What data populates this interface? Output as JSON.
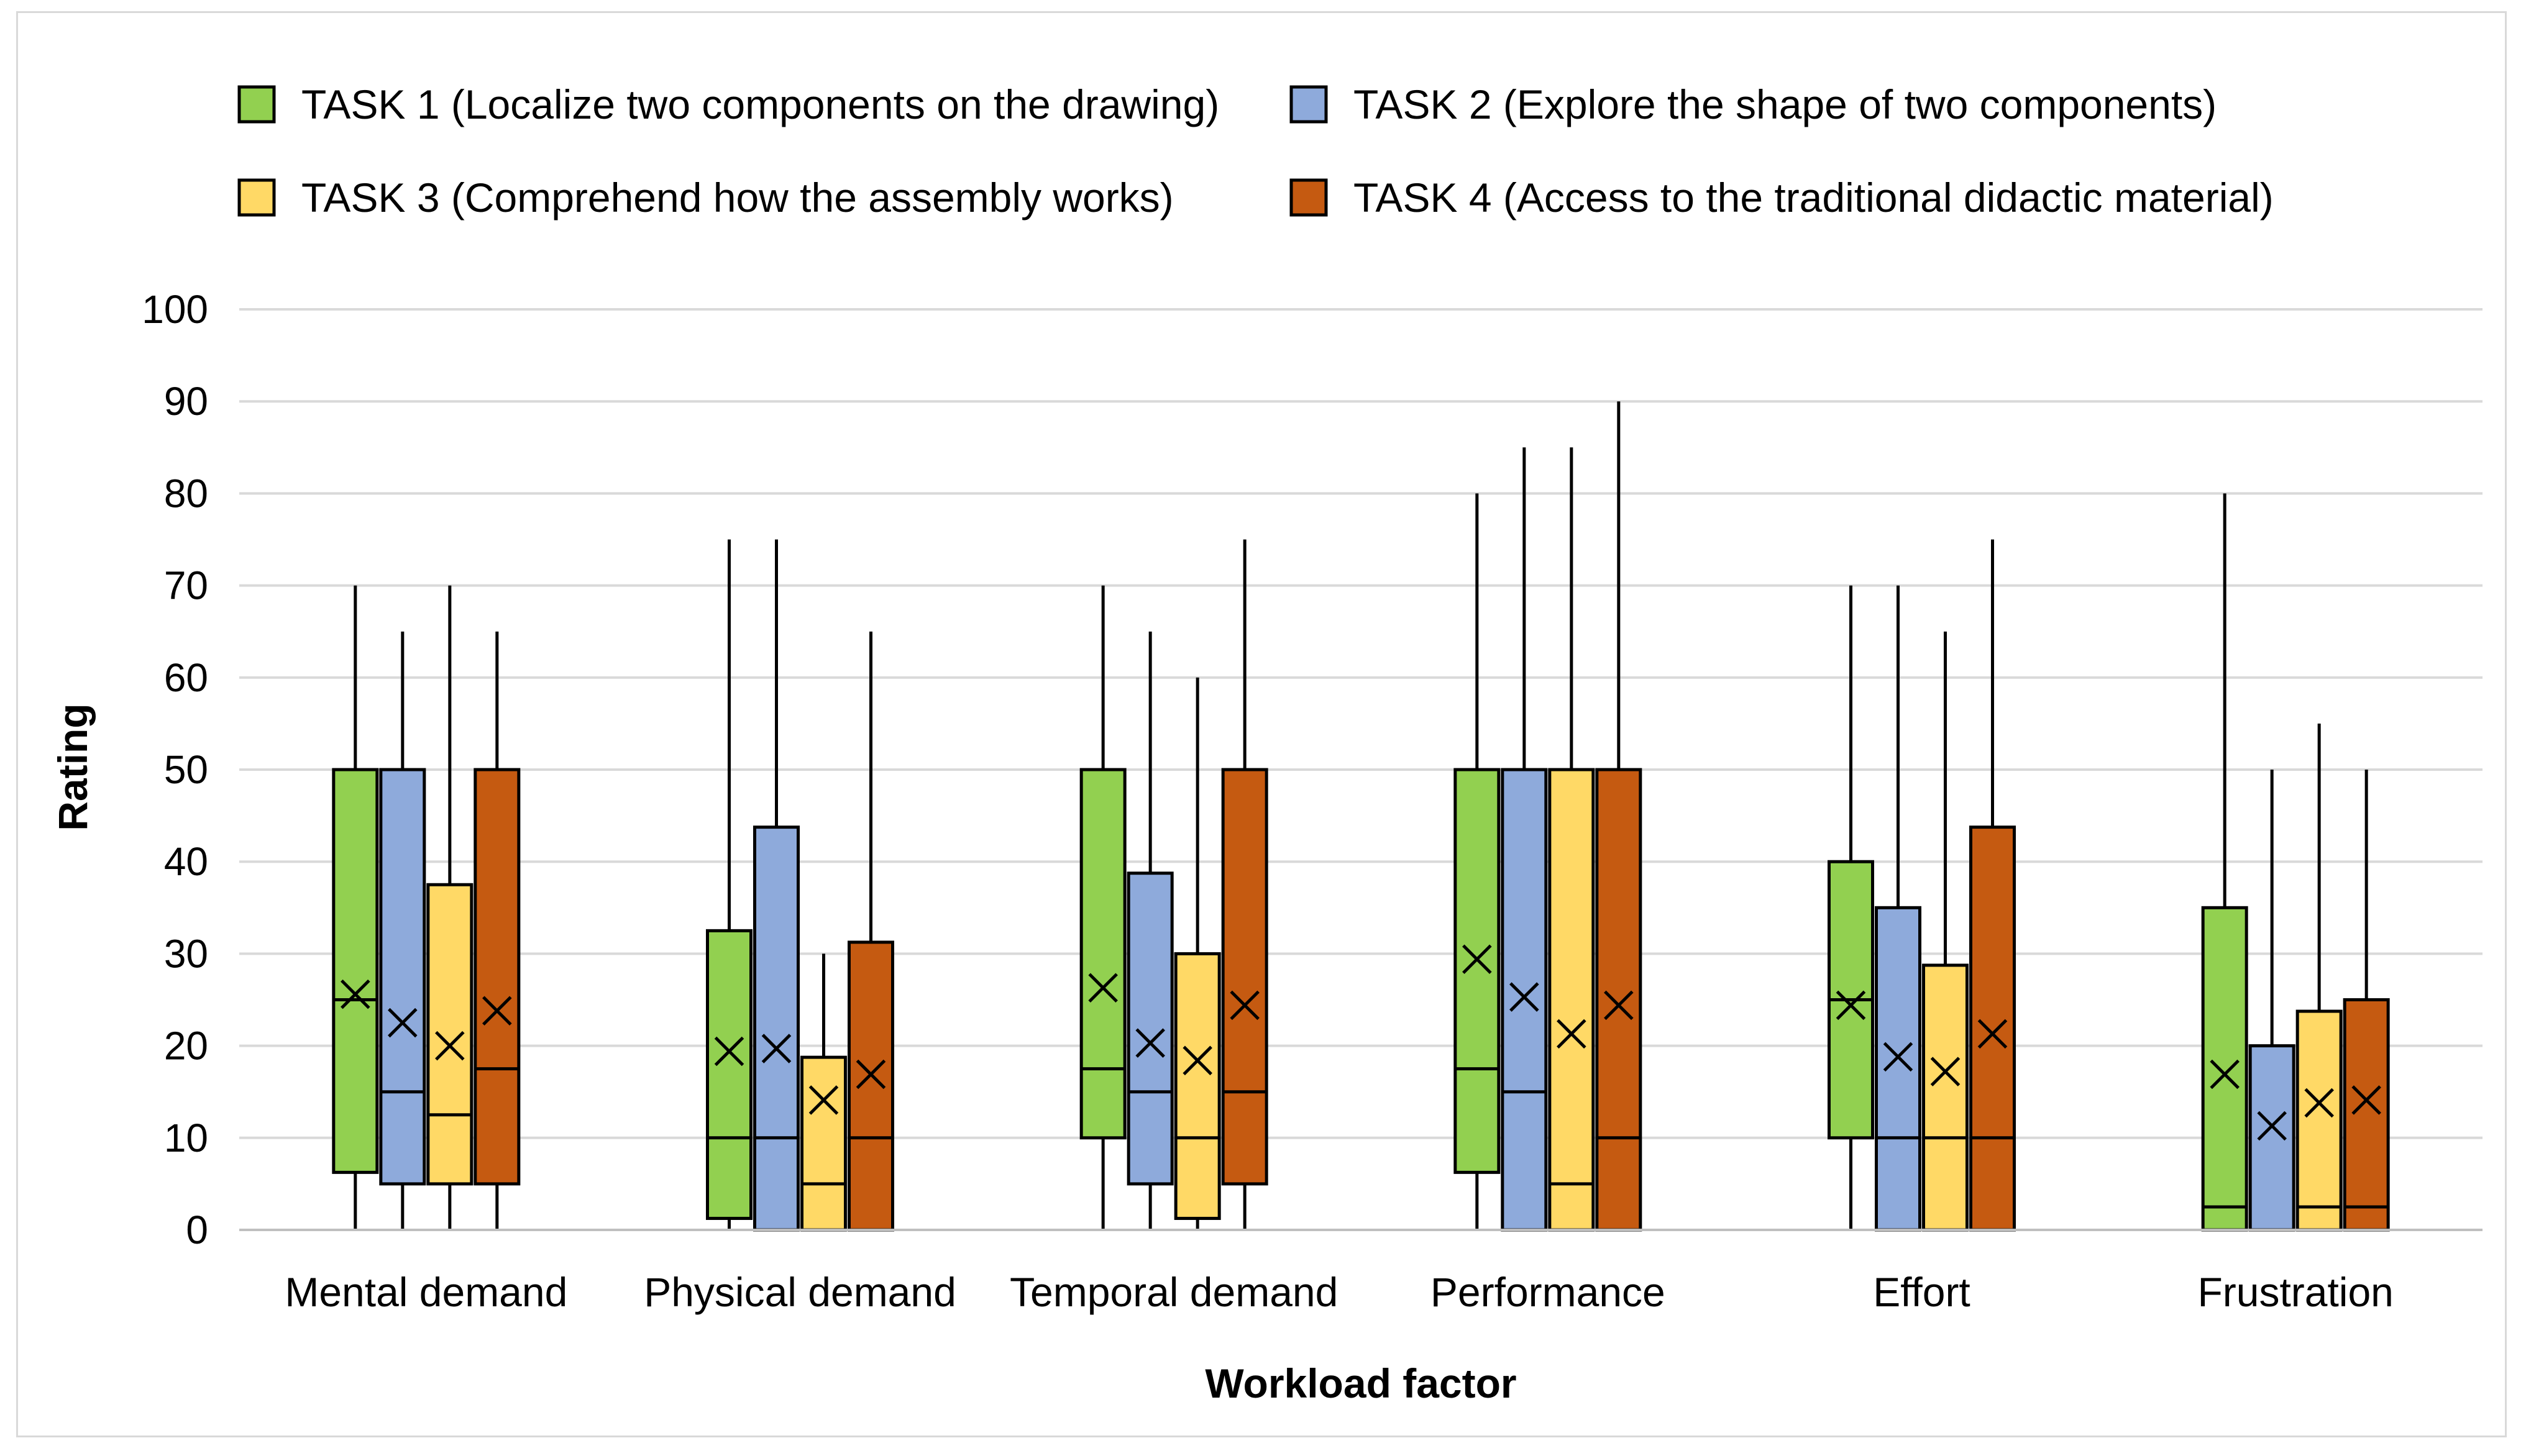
{
  "chart_data": {
    "type": "boxplot",
    "title": "",
    "xlabel": "Workload factor",
    "ylabel": "Rating",
    "ylim": [
      0,
      100
    ],
    "yticks": [
      0,
      10,
      20,
      30,
      40,
      50,
      60,
      70,
      80,
      90,
      100
    ],
    "grid": "horizontal",
    "legend_position": "top",
    "categories": [
      "Mental demand",
      "Physical demand",
      "Temporal demand",
      "Performance",
      "Effort",
      "Frustration"
    ],
    "series": [
      {
        "name": "TASK 1 (Localize two components on the drawing)",
        "color": "#92d050",
        "boxes": [
          {
            "min": 0,
            "q1": 6.25,
            "median": 25,
            "q3": 50,
            "max": 70,
            "mean": 25.6
          },
          {
            "min": 0,
            "q1": 1.25,
            "median": 10,
            "q3": 32.5,
            "max": 75,
            "mean": 19.4
          },
          {
            "min": 0,
            "q1": 10,
            "median": 17.5,
            "q3": 50,
            "max": 70,
            "mean": 26.3
          },
          {
            "min": 0,
            "q1": 6.25,
            "median": 17.5,
            "q3": 50,
            "max": 80,
            "mean": 29.4
          },
          {
            "min": 0,
            "q1": 10,
            "median": 25,
            "q3": 40,
            "max": 70,
            "mean": 24.4
          },
          {
            "min": 0,
            "q1": 0,
            "median": 2.5,
            "q3": 35,
            "max": 80,
            "mean": 16.9
          }
        ]
      },
      {
        "name": "TASK 2 (Explore the shape of two components)",
        "color": "#8eaadb",
        "boxes": [
          {
            "min": 0,
            "q1": 5,
            "median": 15,
            "q3": 50,
            "max": 65,
            "mean": 22.5
          },
          {
            "min": 0,
            "q1": 0,
            "median": 10,
            "q3": 43.75,
            "max": 75,
            "mean": 19.7
          },
          {
            "min": 0,
            "q1": 5,
            "median": 15,
            "q3": 38.75,
            "max": 65,
            "mean": 20.3
          },
          {
            "min": 0,
            "q1": 0,
            "median": 15,
            "q3": 50,
            "max": 85,
            "mean": 25.3
          },
          {
            "min": 0,
            "q1": 0,
            "median": 10,
            "q3": 35,
            "max": 70,
            "mean": 18.8
          },
          {
            "min": 0,
            "q1": 0,
            "median": 0,
            "q3": 20,
            "max": 50,
            "mean": 11.3
          }
        ]
      },
      {
        "name": "TASK 3 (Comprehend how the assembly works)",
        "color": "#ffd966",
        "boxes": [
          {
            "min": 0,
            "q1": 5,
            "median": 12.5,
            "q3": 37.5,
            "max": 70,
            "mean": 20
          },
          {
            "min": 0,
            "q1": 0,
            "median": 5,
            "q3": 18.75,
            "max": 30,
            "mean": 14.1
          },
          {
            "min": 0,
            "q1": 1.25,
            "median": 10,
            "q3": 30,
            "max": 60,
            "mean": 18.4
          },
          {
            "min": 0,
            "q1": 0,
            "median": 5,
            "q3": 50,
            "max": 85,
            "mean": 21.3
          },
          {
            "min": 0,
            "q1": 0,
            "median": 10,
            "q3": 28.75,
            "max": 65,
            "mean": 17.2
          },
          {
            "min": 0,
            "q1": 0,
            "median": 2.5,
            "q3": 23.75,
            "max": 55,
            "mean": 13.8
          }
        ]
      },
      {
        "name": "TASK 4 (Access to the traditional didactic material)",
        "color": "#c55a11",
        "boxes": [
          {
            "min": 0,
            "q1": 5,
            "median": 17.5,
            "q3": 50,
            "max": 65,
            "mean": 23.8
          },
          {
            "min": 0,
            "q1": 0,
            "median": 10,
            "q3": 31.25,
            "max": 65,
            "mean": 16.9
          },
          {
            "min": 0,
            "q1": 5,
            "median": 15,
            "q3": 50,
            "max": 75,
            "mean": 24.4
          },
          {
            "min": 0,
            "q1": 0,
            "median": 10,
            "q3": 50,
            "max": 90,
            "mean": 24.4
          },
          {
            "min": 0,
            "q1": 0,
            "median": 10,
            "q3": 43.75,
            "max": 75,
            "mean": 21.3
          },
          {
            "min": 0,
            "q1": 0,
            "median": 2.5,
            "q3": 25,
            "max": 50,
            "mean": 14.1
          }
        ]
      }
    ]
  }
}
